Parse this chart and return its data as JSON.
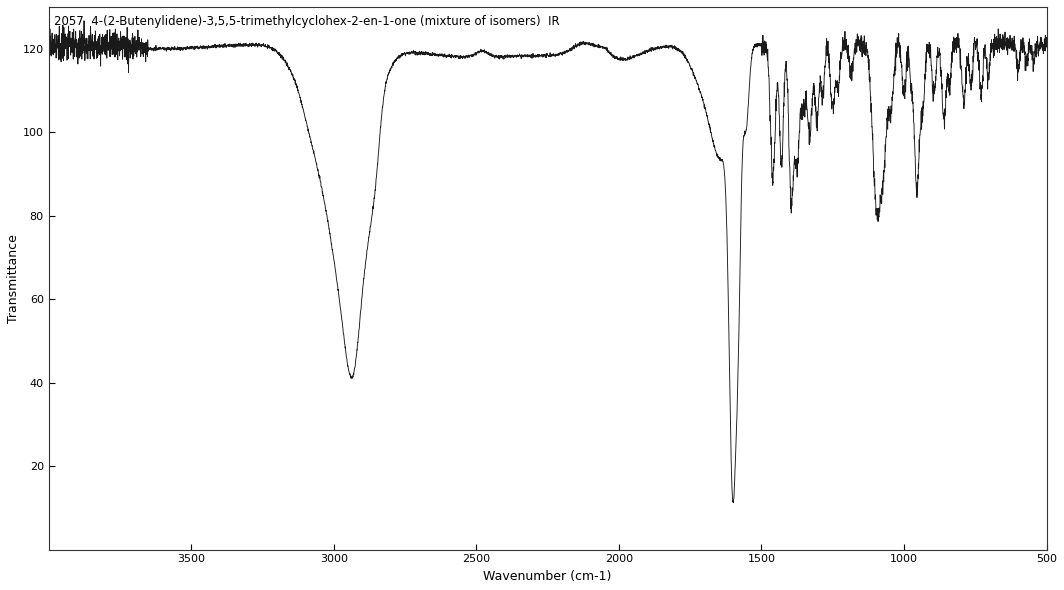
{
  "title": "2057  4-(2-Butenylidene)-3,5,5-trimethylcyclohex-2-en-1-one (mixture of isomers)  IR",
  "xlabel": "Wavenumber (cm-1)",
  "ylabel": "Transmittance",
  "xlim": [
    4000,
    500
  ],
  "ylim": [
    0,
    130
  ],
  "yticks": [
    20,
    40,
    60,
    80,
    100,
    120
  ],
  "xticks": [
    3500,
    3000,
    2500,
    2000,
    1500,
    1000,
    500
  ],
  "background_color": "#ffffff",
  "line_color": "#1a1a1a",
  "title_fontsize": 8.5,
  "axis_fontsize": 9
}
